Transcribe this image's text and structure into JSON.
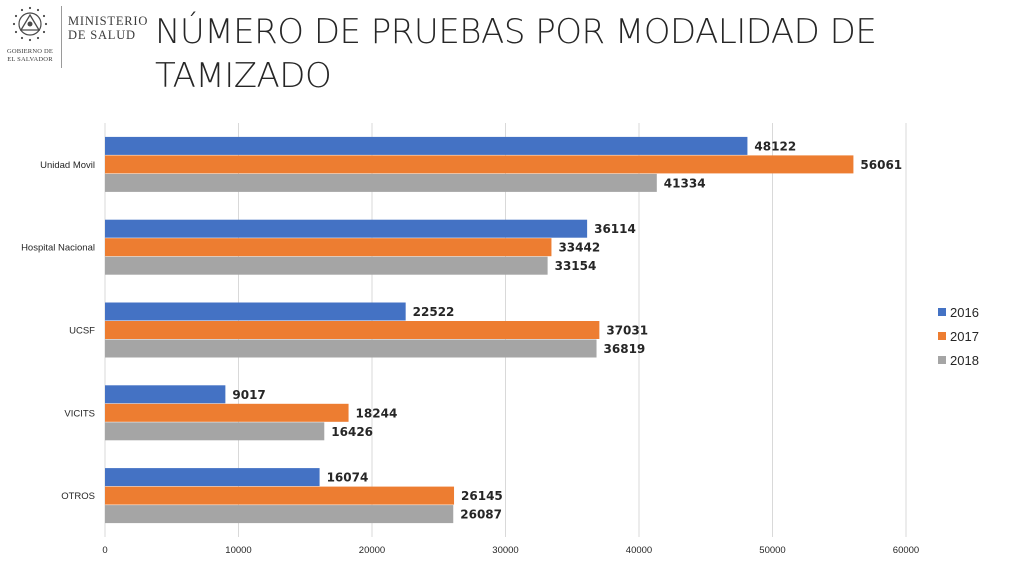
{
  "header": {
    "logo_seal_text": "GOBIERNO DE EL SALVADOR",
    "logo_ministry_line1": "MINISTERIO",
    "logo_ministry_line2": "DE SALUD",
    "title": "NÚMERO DE PRUEBAS POR MODALIDAD DE TAMIZADO"
  },
  "chart_data": {
    "type": "bar",
    "orientation": "horizontal",
    "title": "",
    "xlabel": "",
    "ylabel": "",
    "categories": [
      "Unidad Movil",
      "Hospital Nacional",
      "UCSF",
      "VICITS",
      "OTROS"
    ],
    "series": [
      {
        "name": "2016",
        "color": "#4472C4",
        "values": [
          48122,
          36114,
          22522,
          9017,
          16074
        ]
      },
      {
        "name": "2017",
        "color": "#ED7D31",
        "values": [
          56061,
          33442,
          37031,
          18244,
          26145
        ]
      },
      {
        "name": "2018",
        "color": "#A5A5A5",
        "values": [
          41334,
          33154,
          36819,
          16426,
          26087
        ]
      }
    ],
    "xlim": [
      0,
      60000
    ],
    "xticks": [
      "0",
      "10000",
      "20000",
      "30000",
      "40000",
      "50000",
      "60000"
    ],
    "grid": true,
    "legend_position": "right",
    "data_labels": true
  }
}
